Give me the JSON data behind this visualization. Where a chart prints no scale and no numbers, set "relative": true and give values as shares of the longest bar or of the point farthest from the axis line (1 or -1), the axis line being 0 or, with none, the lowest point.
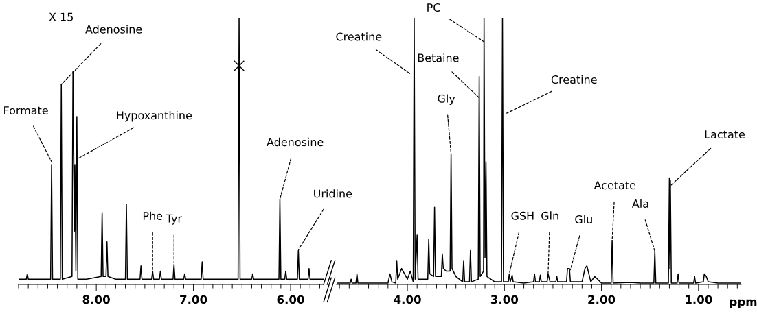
{
  "chart_data": [
    {
      "type": "line",
      "relative": true,
      "xlim": [
        8.8,
        5.66
      ],
      "xticks": [
        {
          "value": 8.8,
          "label": null
        },
        {
          "value": 8.7,
          "label": null
        },
        {
          "value": 8.6,
          "label": null
        },
        {
          "value": 8.5,
          "label": null
        },
        {
          "value": 8.4,
          "label": null
        },
        {
          "value": 8.3,
          "label": null
        },
        {
          "value": 8.2,
          "label": null
        },
        {
          "value": 8.1,
          "label": null
        },
        {
          "value": 8.0,
          "label": "8.00"
        },
        {
          "value": 7.9,
          "label": null
        },
        {
          "value": 7.8,
          "label": null
        },
        {
          "value": 7.7,
          "label": null
        },
        {
          "value": 7.6,
          "label": null
        },
        {
          "value": 7.5,
          "label": null
        },
        {
          "value": 7.4,
          "label": null
        },
        {
          "value": 7.3,
          "label": null
        },
        {
          "value": 7.2,
          "label": null
        },
        {
          "value": 7.1,
          "label": null
        },
        {
          "value": 7.0,
          "label": "7.00"
        },
        {
          "value": 6.9,
          "label": null
        },
        {
          "value": 6.8,
          "label": null
        },
        {
          "value": 6.7,
          "label": null
        },
        {
          "value": 6.6,
          "label": null
        },
        {
          "value": 6.5,
          "label": null
        },
        {
          "value": 6.4,
          "label": null
        },
        {
          "value": 6.3,
          "label": null
        },
        {
          "value": 6.2,
          "label": null
        },
        {
          "value": 6.1,
          "label": null
        },
        {
          "value": 6.0,
          "label": "6.00"
        },
        {
          "value": 5.9,
          "label": null
        },
        {
          "value": 5.8,
          "label": null
        },
        {
          "value": 5.7,
          "label": null
        }
      ],
      "series": [
        {
          "color": "#000000",
          "x": [
            8.8,
            8.72,
            8.71,
            8.7,
            8.47,
            8.46,
            8.45,
            8.37,
            8.36,
            8.35,
            8.25,
            8.24,
            8.225,
            8.22,
            8.21,
            8.2,
            8.19,
            8.1,
            7.95,
            7.94,
            7.93,
            7.9,
            7.89,
            7.88,
            7.8,
            7.7,
            7.69,
            7.68,
            7.55,
            7.54,
            7.53,
            7.43,
            7.42,
            7.41,
            7.35,
            7.34,
            7.33,
            7.21,
            7.2,
            7.19,
            7.1,
            7.09,
            7.08,
            6.92,
            6.91,
            6.9,
            6.7,
            6.54,
            6.53,
            6.52,
            6.4,
            6.39,
            6.38,
            6.25,
            6.12,
            6.11,
            6.1,
            6.06,
            6.05,
            6.04,
            5.93,
            5.92,
            5.91,
            5.82,
            5.81,
            5.8,
            5.7,
            5.66
          ],
          "values": [
            0.02,
            0.02,
            0.04,
            0.02,
            0.02,
            0.45,
            0.02,
            0.02,
            0.75,
            0.02,
            0.03,
            0.8,
            0.2,
            0.45,
            0.05,
            0.63,
            0.02,
            0.02,
            0.03,
            0.27,
            0.03,
            0.03,
            0.16,
            0.03,
            0.02,
            0.02,
            0.3,
            0.02,
            0.02,
            0.07,
            0.02,
            0.02,
            0.05,
            0.02,
            0.02,
            0.05,
            0.02,
            0.02,
            0.075,
            0.02,
            0.02,
            0.04,
            0.02,
            0.02,
            0.085,
            0.02,
            0.02,
            0.02,
            1,
            0.02,
            0.02,
            0.04,
            0.02,
            0.02,
            0.02,
            0.32,
            0.02,
            0.02,
            0.05,
            0.02,
            0.02,
            0.13,
            0.02,
            0.02,
            0.06,
            0.02,
            0.02,
            0.02
          ]
        },
        {
          "type": "scatter",
          "marker": "cross",
          "color": "#000000",
          "x": [
            6.53
          ],
          "values": [
            0.82
          ]
        }
      ],
      "annotations": [
        "X 15",
        {
          "text": "Formate",
          "x": 8.46,
          "y": 0.46
        },
        {
          "text": "Adenosine",
          "x": 8.36,
          "y": 0.75
        },
        {
          "text": "Hypoxanthine",
          "x": 8.2,
          "y": 0.47
        },
        {
          "text": "Phe",
          "x": 7.42,
          "y": 0.05
        },
        {
          "text": "Tyr",
          "x": 7.2,
          "y": 0.08
        },
        {
          "text": "Adenosine",
          "x": 6.11,
          "y": 0.32
        },
        {
          "text": "Uridine",
          "x": 5.92,
          "y": 0.13
        }
      ]
    },
    {
      "type": "line",
      "relative": true,
      "xlim": [
        4.73,
        0.56
      ],
      "xlabel": "ppm",
      "xticks": [
        {
          "value": 4.7,
          "label": null
        },
        {
          "value": 4.6,
          "label": null
        },
        {
          "value": 4.5,
          "label": null
        },
        {
          "value": 4.4,
          "label": null
        },
        {
          "value": 4.3,
          "label": null
        },
        {
          "value": 4.2,
          "label": null
        },
        {
          "value": 4.1,
          "label": null
        },
        {
          "value": 4.0,
          "label": "4.00"
        },
        {
          "value": 3.9,
          "label": null
        },
        {
          "value": 3.8,
          "label": null
        },
        {
          "value": 3.7,
          "label": null
        },
        {
          "value": 3.6,
          "label": null
        },
        {
          "value": 3.5,
          "label": null
        },
        {
          "value": 3.4,
          "label": null
        },
        {
          "value": 3.3,
          "label": null
        },
        {
          "value": 3.2,
          "label": null
        },
        {
          "value": 3.1,
          "label": null
        },
        {
          "value": 3.0,
          "label": "3.00"
        },
        {
          "value": 2.9,
          "label": null
        },
        {
          "value": 2.8,
          "label": null
        },
        {
          "value": 2.7,
          "label": null
        },
        {
          "value": 2.6,
          "label": null
        },
        {
          "value": 2.5,
          "label": null
        },
        {
          "value": 2.4,
          "label": null
        },
        {
          "value": 2.3,
          "label": null
        },
        {
          "value": 2.2,
          "label": null
        },
        {
          "value": 2.1,
          "label": null
        },
        {
          "value": 2.0,
          "label": "2.00"
        },
        {
          "value": 1.9,
          "label": null
        },
        {
          "value": 1.8,
          "label": null
        },
        {
          "value": 1.7,
          "label": null
        },
        {
          "value": 1.6,
          "label": null
        },
        {
          "value": 1.5,
          "label": null
        },
        {
          "value": 1.4,
          "label": null
        },
        {
          "value": 1.3,
          "label": null
        },
        {
          "value": 1.2,
          "label": null
        },
        {
          "value": 1.1,
          "label": null
        },
        {
          "value": 1.0,
          "label": "1.00"
        },
        {
          "value": 0.9,
          "label": null
        },
        {
          "value": 0.8,
          "label": null
        },
        {
          "value": 0.7,
          "label": null
        },
        {
          "value": 0.6,
          "label": null
        }
      ],
      "series": [
        {
          "color": "#000000",
          "x": [
            4.73,
            4.59,
            4.58,
            4.57,
            4.53,
            4.52,
            4.51,
            4.2,
            4.18,
            4.16,
            4.12,
            4.11,
            4.1,
            4.06,
            4.0,
            3.97,
            3.94,
            3.93,
            3.92,
            3.9,
            3.89,
            3.79,
            3.78,
            3.77,
            3.73,
            3.72,
            3.71,
            3.65,
            3.64,
            3.63,
            3.6,
            3.56,
            3.55,
            3.54,
            3.5,
            3.43,
            3.42,
            3.41,
            3.36,
            3.35,
            3.34,
            3.27,
            3.26,
            3.25,
            3.215,
            3.21,
            3.2,
            3.19,
            3.18,
            3.1,
            3.03,
            3.02,
            3.01,
            2.96,
            2.95,
            2.94,
            2.92,
            2.91,
            2.8,
            2.7,
            2.69,
            2.68,
            2.64,
            2.63,
            2.62,
            2.56,
            2.55,
            2.53,
            2.47,
            2.46,
            2.45,
            2.36,
            2.35,
            2.33,
            2.32,
            2.2,
            2.17,
            2.15,
            2.13,
            2.11,
            2.07,
            2.04,
            2.0,
            1.9,
            1.89,
            1.88,
            1.7,
            1.6,
            1.46,
            1.45,
            1.44,
            1.31,
            1.3,
            1.295,
            1.29,
            1.28,
            1.22,
            1.21,
            1.2,
            1.05,
            1.04,
            1.03,
            0.95,
            0.94,
            0.92,
            0.9,
            0.8,
            0.56
          ],
          "values": [
            0.005,
            0.005,
            0.02,
            0.005,
            0.005,
            0.04,
            0.005,
            0.005,
            0.04,
            0.01,
            0.005,
            0.09,
            0.02,
            0.06,
            0.02,
            0.05,
            0.01,
            1,
            0.02,
            0.185,
            0.02,
            0.02,
            0.17,
            0.04,
            0.03,
            0.29,
            0.03,
            0.03,
            0.115,
            0.06,
            0.05,
            0.05,
            0.49,
            0.06,
            0.03,
            0.01,
            0.09,
            0.01,
            0.01,
            0.13,
            0.01,
            0.02,
            0.78,
            0.03,
            0.05,
            1,
            0.1,
            0.46,
            0.03,
            0.01,
            0.01,
            1,
            0.01,
            0.01,
            0.04,
            0.01,
            0.035,
            0.01,
            0.005,
            0.01,
            0.04,
            0.01,
            0.01,
            0.035,
            0.01,
            0.01,
            0.04,
            0.01,
            0.01,
            0.03,
            0.01,
            0.01,
            0.06,
            0.06,
            0.01,
            0.01,
            0.06,
            0.07,
            0.04,
            0.01,
            0.03,
            0.02,
            0.005,
            0.005,
            0.165,
            0.005,
            0.008,
            0.005,
            0.005,
            0.125,
            0.005,
            0.005,
            0.4,
            0.06,
            0.39,
            0.005,
            0.005,
            0.04,
            0.005,
            0.005,
            0.03,
            0.005,
            0.01,
            0.04,
            0.03,
            0.01,
            0.005,
            0.005
          ]
        }
      ],
      "annotations": [
        {
          "text": "Creatine",
          "x": 3.97,
          "y": 0.79
        },
        {
          "text": "PC",
          "x": 3.21,
          "y": 0.91
        },
        {
          "text": "Betaine",
          "x": 3.26,
          "y": 0.7
        },
        {
          "text": "Creatine",
          "x": 2.99,
          "y": 0.64
        },
        {
          "text": "Gly",
          "x": 3.55,
          "y": 0.49
        },
        {
          "text": "GSH",
          "x": 2.95,
          "y": 0.04
        },
        {
          "text": "Gln",
          "x": 2.55,
          "y": 0.04
        },
        {
          "text": "Glu",
          "x": 2.32,
          "y": 0.055
        },
        {
          "text": "Acetate",
          "x": 1.89,
          "y": 0.165
        },
        {
          "text": "Ala",
          "x": 1.45,
          "y": 0.125
        },
        {
          "text": "Lactate",
          "x": 1.29,
          "y": 0.37
        }
      ]
    }
  ]
}
